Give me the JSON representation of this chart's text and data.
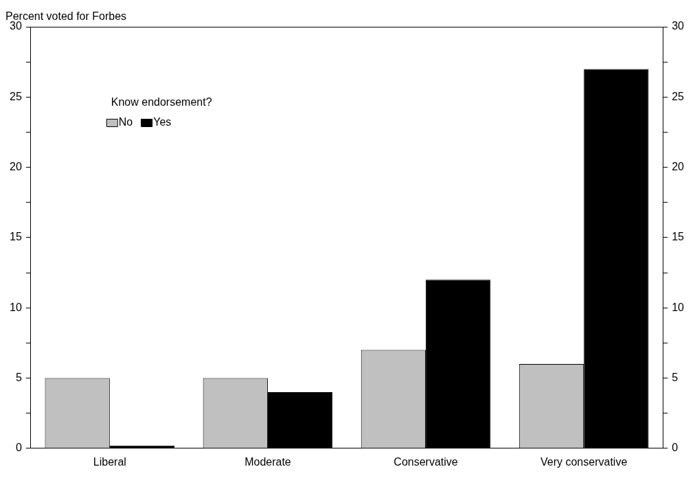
{
  "chart_data": {
    "type": "bar",
    "ylabel": "Percent voted for Forbes",
    "legend_title": "Know endorsement?",
    "categories": [
      "Liberal",
      "Moderate",
      "Conservative",
      "Very conservative"
    ],
    "series": [
      {
        "name": "No",
        "color": "#c0c0c0",
        "values": [
          5,
          5,
          7,
          6
        ]
      },
      {
        "name": "Yes",
        "color": "#000000",
        "values": [
          0.2,
          4,
          12,
          27
        ]
      }
    ],
    "ylim": [
      0,
      30
    ],
    "yticks": [
      0,
      {
        "value": 2.5,
        "label": null
      },
      5,
      {
        "value": 7.5,
        "label": null
      },
      10,
      {
        "value": 12.5,
        "label": null
      },
      15,
      {
        "value": 17.5,
        "label": null
      },
      20,
      {
        "value": 22.5,
        "label": null
      },
      25,
      {
        "value": 27.5,
        "label": null
      },
      30
    ],
    "y2lim": [
      0,
      30
    ],
    "y2ticks": [
      0,
      {
        "value": 2.5,
        "label": null
      },
      5,
      {
        "value": 7.5,
        "label": null
      },
      10,
      {
        "value": 12.5,
        "label": null
      },
      15,
      {
        "value": 17.5,
        "label": null
      },
      20,
      {
        "value": 22.5,
        "label": null
      },
      25,
      {
        "value": 27.5,
        "label": null
      },
      30
    ],
    "grid": false,
    "legend": "top left"
  }
}
